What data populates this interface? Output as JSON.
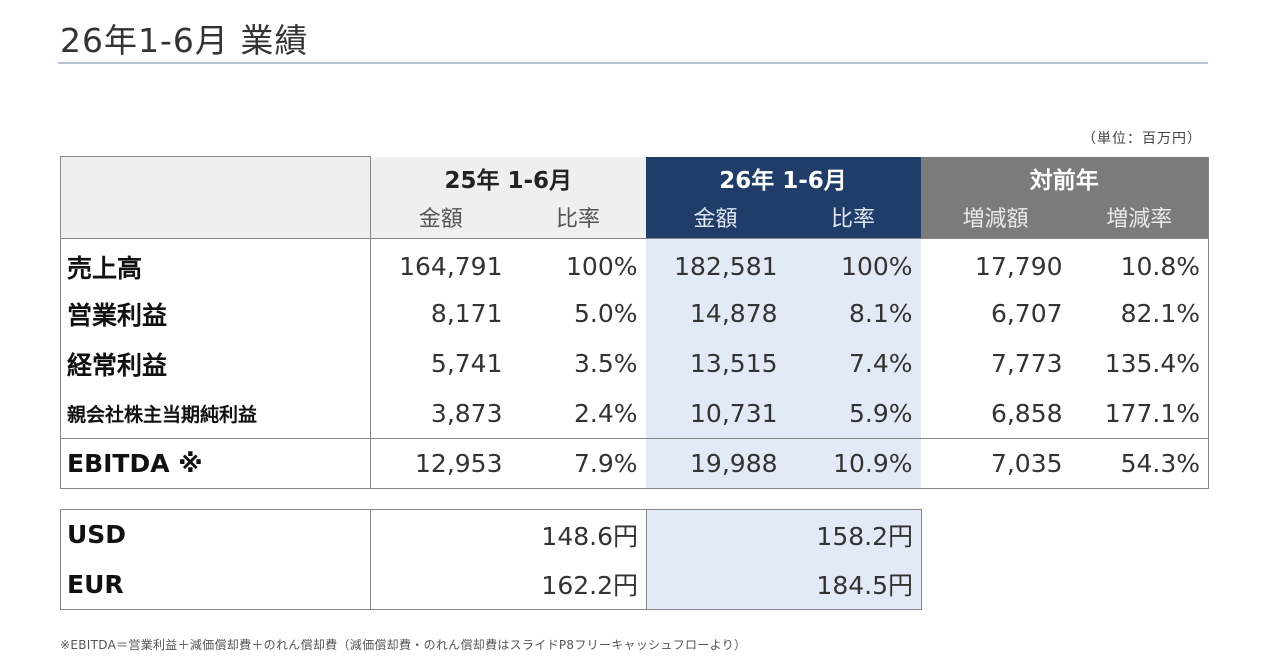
{
  "title": "26年1-6月 業績",
  "unit": "（単位：百万円）",
  "header": {
    "prev_period": "25年 1-6月",
    "cur_period": "26年 1-6月",
    "yoy": "対前年",
    "amount": "金額",
    "ratio": "比率",
    "change_amount": "増減額",
    "change_rate": "増減率"
  },
  "rows": [
    {
      "label": "売上高",
      "prev_amount": "164,791",
      "prev_ratio": "100%",
      "cur_amount": "182,581",
      "cur_ratio": "100%",
      "change_amount": "17,790",
      "change_rate": "10.8%"
    },
    {
      "label": "営業利益",
      "prev_amount": "8,171",
      "prev_ratio": "5.0%",
      "cur_amount": "14,878",
      "cur_ratio": "8.1%",
      "change_amount": "6,707",
      "change_rate": "82.1%"
    },
    {
      "label": "経常利益",
      "prev_amount": "5,741",
      "prev_ratio": "3.5%",
      "cur_amount": "13,515",
      "cur_ratio": "7.4%",
      "change_amount": "7,773",
      "change_rate": "135.4%"
    },
    {
      "label": "親会社株主当期純利益",
      "prev_amount": "3,873",
      "prev_ratio": "2.4%",
      "cur_amount": "10,731",
      "cur_ratio": "5.9%",
      "change_amount": "6,858",
      "change_rate": "177.1%"
    }
  ],
  "ebitda": {
    "label": "EBITDA ※",
    "prev_amount": "12,953",
    "prev_ratio": "7.9%",
    "cur_amount": "19,988",
    "cur_ratio": "10.9%",
    "change_amount": "7,035",
    "change_rate": "54.3%"
  },
  "fx": [
    {
      "label": "USD",
      "prev": "148.6円",
      "cur": "158.2円"
    },
    {
      "label": "EUR",
      "prev": "162.2円",
      "cur": "184.5円"
    }
  ],
  "footnote": "※EBITDA＝営業利益＋減価償却費＋のれん償却費（減価償却費・のれん償却費はスライドP8フリーキャッシュフローより）",
  "colors": {
    "cur_header": "#1f3d68",
    "yoy_header": "#7b7b7b",
    "cur_column": "#e1eaf6",
    "prev_header": "#efefef"
  }
}
